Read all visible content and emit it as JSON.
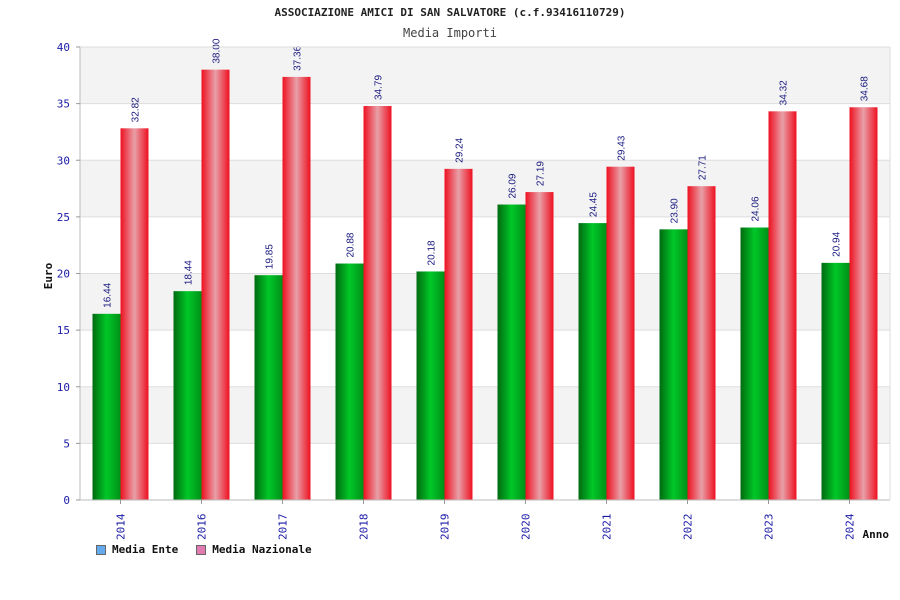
{
  "title": "ASSOCIAZIONE AMICI DI SAN SALVATORE (c.f.93416110729)",
  "subtitle": "Media Importi",
  "colors": {
    "series_ente": "#00b020",
    "series_nazionale": "#e8101e",
    "legend_ente": "#66aaee",
    "legend_nazionale": "#e07ab0",
    "axis_text": "#1a1aa6"
  },
  "legend": [
    {
      "label": "Media Ente"
    },
    {
      "label": "Media Nazionale"
    }
  ],
  "chart_data": {
    "type": "bar",
    "xlabel": "Anno",
    "ylabel": "Euro",
    "ylim": [
      0,
      40
    ],
    "yticks": [
      0,
      5,
      10,
      15,
      20,
      25,
      30,
      35,
      40
    ],
    "grid": true,
    "legend_position": "bottom-left",
    "categories": [
      "2014",
      "2016",
      "2017",
      "2018",
      "2019",
      "2020",
      "2021",
      "2022",
      "2023",
      "2024"
    ],
    "series": [
      {
        "name": "Media Ente",
        "values": [
          16.44,
          18.44,
          19.85,
          20.88,
          20.18,
          26.09,
          24.45,
          23.9,
          24.06,
          20.94
        ],
        "labels": [
          "16.44",
          "18.44",
          "19.85",
          "20.88",
          "20.18",
          "26.09",
          "24.45",
          "23.90",
          "24.06",
          "20.94"
        ]
      },
      {
        "name": "Media Nazionale",
        "values": [
          32.82,
          38.0,
          37.36,
          34.79,
          29.24,
          27.19,
          29.43,
          27.71,
          34.32,
          34.68
        ],
        "labels": [
          "32.82",
          "38.00",
          "37.36",
          "34.79",
          "29.24",
          "27.19",
          "29.43",
          "27.71",
          "34.32",
          "34.68"
        ]
      }
    ]
  }
}
